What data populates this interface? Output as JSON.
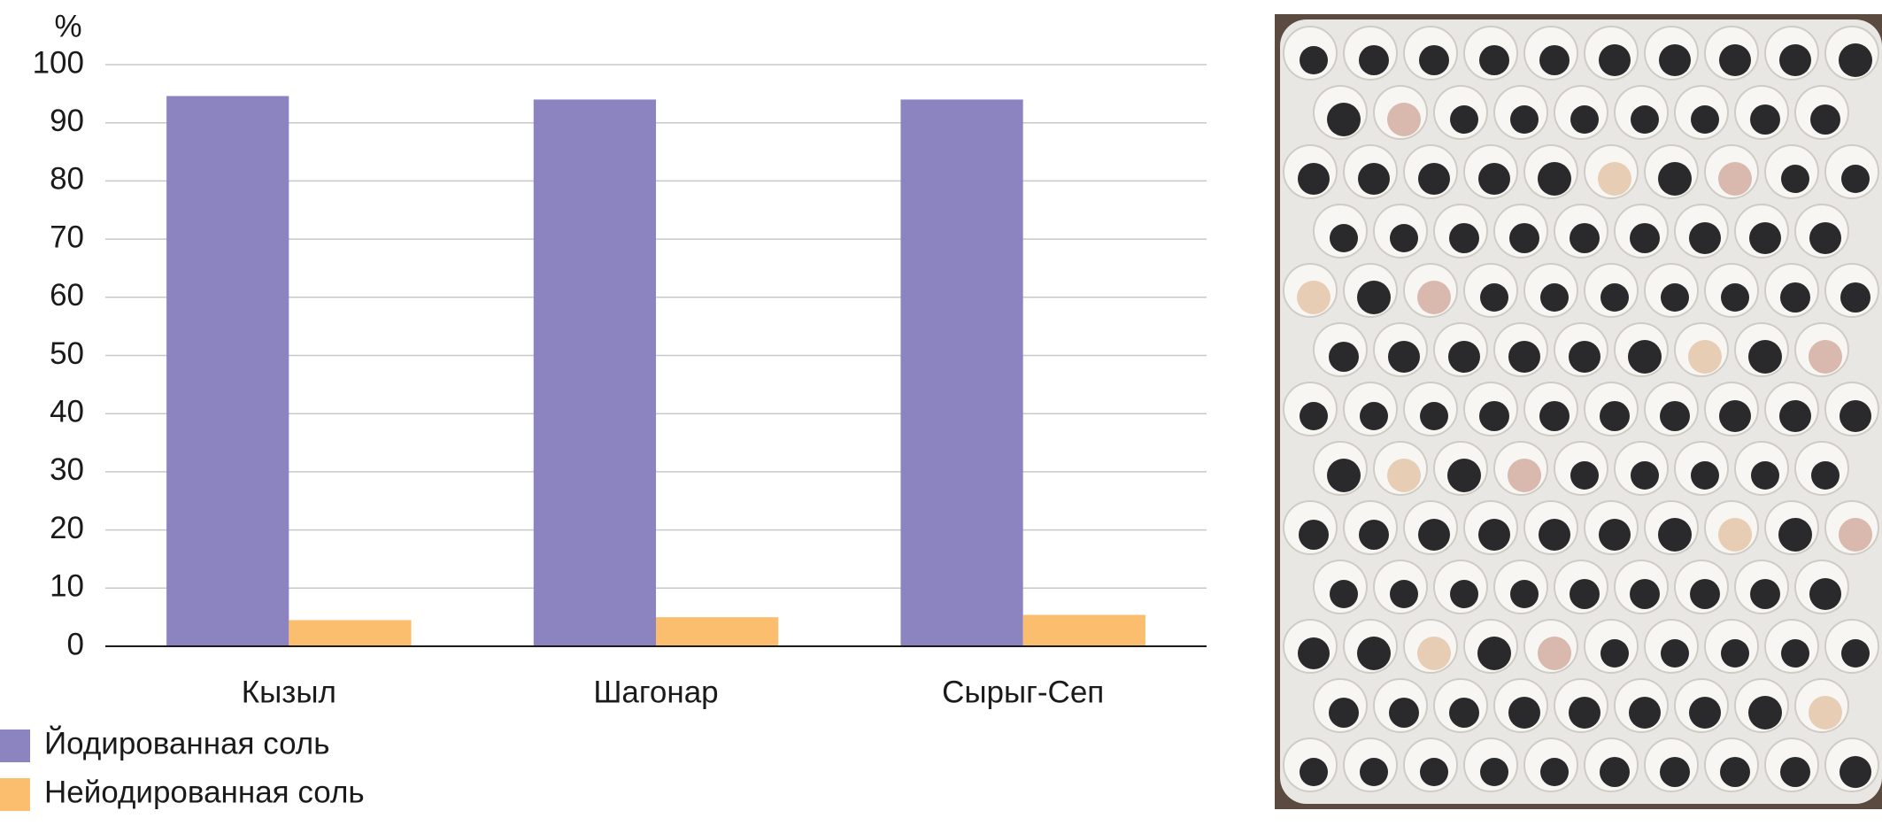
{
  "chart_data": {
    "type": "bar",
    "y_unit_label": "%",
    "categories": [
      "Кызыл",
      "Шагонар",
      "Сырыг-Сеп"
    ],
    "series": [
      {
        "name": "Йодированная соль",
        "color": "#8b84c0",
        "values": [
          94.6,
          94.0,
          94.0
        ]
      },
      {
        "name": "Нейодированная соль",
        "color": "#fbbd6e",
        "values": [
          4.5,
          5.0,
          5.4
        ]
      }
    ],
    "ylim": [
      0,
      100
    ],
    "yticks": [
      0,
      10,
      20,
      30,
      40,
      50,
      60,
      70,
      80,
      90,
      100
    ],
    "grid": true
  }
}
